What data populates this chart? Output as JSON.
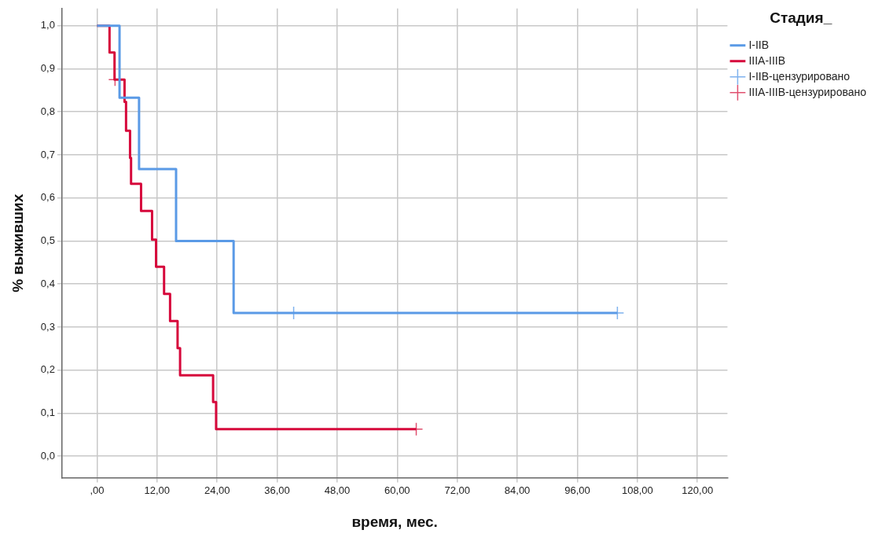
{
  "chart_data": {
    "type": "step",
    "xlabel": "время, мес.",
    "ylabel": "% выживших",
    "legend_title": "Стадия_",
    "legend": "top right",
    "grid": true,
    "xlim": [
      -7,
      126
    ],
    "ylim": [
      -0.05,
      1.04
    ],
    "xticks": [
      {
        "value": 0,
        "label": ",00"
      },
      {
        "value": 12,
        "label": "12,00"
      },
      {
        "value": 24,
        "label": "24,00"
      },
      {
        "value": 36,
        "label": "36,00"
      },
      {
        "value": 48,
        "label": "48,00"
      },
      {
        "value": 60,
        "label": "60,00"
      },
      {
        "value": 72,
        "label": "72,00"
      },
      {
        "value": 84,
        "label": "84,00"
      },
      {
        "value": 96,
        "label": "96,00"
      },
      {
        "value": 108,
        "label": "108,00"
      },
      {
        "value": 120,
        "label": "120,00"
      }
    ],
    "yticks": [
      {
        "value": 0,
        "label": "0,0"
      },
      {
        "value": 0.1,
        "label": "0,1"
      },
      {
        "value": 0.2,
        "label": "0,2"
      },
      {
        "value": 0.3,
        "label": "0,3"
      },
      {
        "value": 0.4,
        "label": "0,4"
      },
      {
        "value": 0.5,
        "label": "0,5"
      },
      {
        "value": 0.6,
        "label": "0,6"
      },
      {
        "value": 0.7,
        "label": "0,7"
      },
      {
        "value": 0.8,
        "label": "0,8"
      },
      {
        "value": 0.9,
        "label": "0,9"
      },
      {
        "value": 1,
        "label": "1,0"
      }
    ],
    "series": [
      {
        "name": "I-IIB",
        "color": "#5a9ae6",
        "marker": "none",
        "x": [
          0,
          4.5,
          8.4,
          15.8,
          27.3,
          104
        ],
        "values": [
          1,
          0.833,
          0.667,
          0.5,
          0.333,
          0.333
        ]
      },
      {
        "name": "IIIA-IIIB",
        "color": "#d6083b",
        "marker": "none",
        "x": [
          0,
          2.5,
          3.5,
          5.5,
          5.8,
          6.6,
          6.8,
          8.8,
          11,
          11.8,
          13.4,
          14.6,
          16.1,
          16.6,
          23.2,
          23.8,
          63.8
        ],
        "values": [
          1,
          0.938,
          0.875,
          0.823,
          0.756,
          0.693,
          0.633,
          0.57,
          0.503,
          0.44,
          0.377,
          0.314,
          0.251,
          0.188,
          0.126,
          0.063,
          0.063
        ]
      },
      {
        "name": "I-IIB-цензурировано",
        "type": "scatter",
        "color": "#7fb2ee",
        "marker": "cross",
        "x": [
          39.3,
          104
        ],
        "values": [
          0.333,
          0.333
        ]
      },
      {
        "name": "IIIA-IIIB-цензурировано",
        "type": "scatter",
        "color": "#e0506f",
        "marker": "cross",
        "x": [
          3.6,
          63.8
        ],
        "values": [
          0.875,
          0.063
        ]
      }
    ]
  }
}
